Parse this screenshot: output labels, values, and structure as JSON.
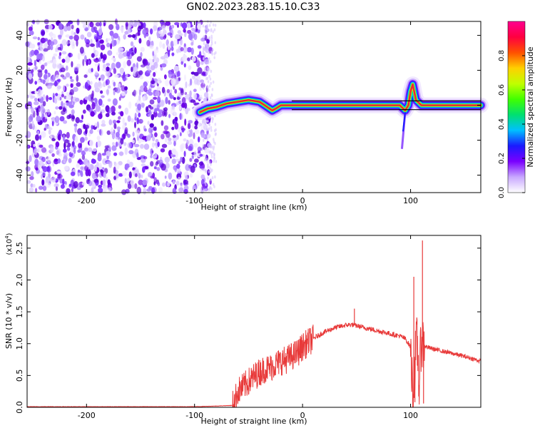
{
  "figure_title": "GN02.2023.283.15.10.C33",
  "colors": {
    "snr_line": "#e83a3a",
    "spectrogram_band": "#e8253a",
    "noise_purple": "#6a00e8",
    "axis": "#000000",
    "background": "#ffffff"
  },
  "chart_data": [
    {
      "type": "heatmap",
      "title": "",
      "xlabel": "Height of straight line (km)",
      "ylabel": "Frequency (Hz)",
      "xlim": [
        -255,
        165
      ],
      "ylim": [
        -50,
        48
      ],
      "x_ticks": [
        -200,
        -100,
        0,
        100
      ],
      "y_ticks": [
        40,
        20,
        0,
        -20,
        -40
      ],
      "colorbar": {
        "label": "Normalized spectral amplitude",
        "range": [
          0.0,
          1.0
        ],
        "ticks": [
          0.0,
          0.2,
          0.4,
          0.6,
          0.8
        ],
        "colormap": [
          "#ffffff",
          "#c8a8ff",
          "#7a00ff",
          "#1a1aff",
          "#00c0ff",
          "#00e070",
          "#40ff00",
          "#c0ff00",
          "#ffd000",
          "#ff5000",
          "#ff0040",
          "#ff0090"
        ]
      },
      "regions": [
        {
          "name": "broadband noise",
          "x_range": [
            -255,
            -85
          ],
          "freq_range": [
            -50,
            48
          ],
          "amplitude": 0.1
        },
        {
          "name": "signal band",
          "x_range": [
            -95,
            165
          ],
          "center_freq": 0,
          "amplitude": 0.85
        }
      ],
      "signal_track": {
        "x": [
          -95,
          -88,
          -80,
          -70,
          -60,
          -50,
          -40,
          -35,
          -28,
          -25,
          -20,
          -15,
          -10,
          0,
          20,
          40,
          60,
          80,
          90,
          95,
          98,
          100,
          102,
          105,
          110,
          130,
          150,
          165
        ],
        "freq": [
          -4,
          -2,
          -1,
          1,
          2,
          3,
          2,
          0,
          -3,
          -2,
          0,
          0,
          0,
          0,
          0,
          0,
          0,
          0,
          0,
          -3,
          0,
          8,
          12,
          3,
          0,
          0,
          0,
          0
        ]
      }
    },
    {
      "type": "line",
      "title": "",
      "xlabel": "Height of straight line (km)",
      "ylabel": "SNR (10 * v/v)",
      "y_multiplier": "(x10",
      "y_multiplier_exp": "4",
      "y_multiplier_close": ")",
      "xlim": [
        -255,
        165
      ],
      "ylim": [
        0.0,
        2.7
      ],
      "x_ticks": [
        -200,
        -100,
        0,
        100
      ],
      "y_ticks": [
        0.0,
        0.5,
        1.0,
        1.5,
        2.0,
        2.5
      ],
      "series": [
        {
          "x": [
            -255,
            -200,
            -150,
            -100,
            -80,
            -65,
            -62,
            -60,
            -55,
            -50,
            -45,
            -40,
            -35,
            -30,
            -25,
            -20,
            -15,
            -10,
            -5,
            0,
            10,
            20,
            30,
            40,
            45,
            50,
            55,
            60,
            70,
            80,
            90,
            95,
            100,
            102,
            104,
            106,
            108,
            110,
            112,
            115,
            120,
            130,
            140,
            150,
            160,
            165
          ],
          "y": [
            0.01,
            0.01,
            0.01,
            0.01,
            0.02,
            0.03,
            0.15,
            0.25,
            0.32,
            0.4,
            0.48,
            0.55,
            0.6,
            0.62,
            0.68,
            0.72,
            0.75,
            0.8,
            0.85,
            0.95,
            1.08,
            1.18,
            1.25,
            1.29,
            1.3,
            1.28,
            1.26,
            1.24,
            1.2,
            1.16,
            1.12,
            1.08,
            0.95,
            0.25,
            0.7,
            1.05,
            0.35,
            1.1,
            0.97,
            0.95,
            0.92,
            0.88,
            0.84,
            0.8,
            0.75,
            0.72
          ],
          "spikes": [
            {
              "x": 48,
              "y": 1.55
            },
            {
              "x": 103,
              "y": 2.05
            },
            {
              "x": 104,
              "y": 0.08
            },
            {
              "x": 111,
              "y": 2.62
            },
            {
              "x": 112,
              "y": 0.06
            }
          ]
        }
      ]
    }
  ]
}
